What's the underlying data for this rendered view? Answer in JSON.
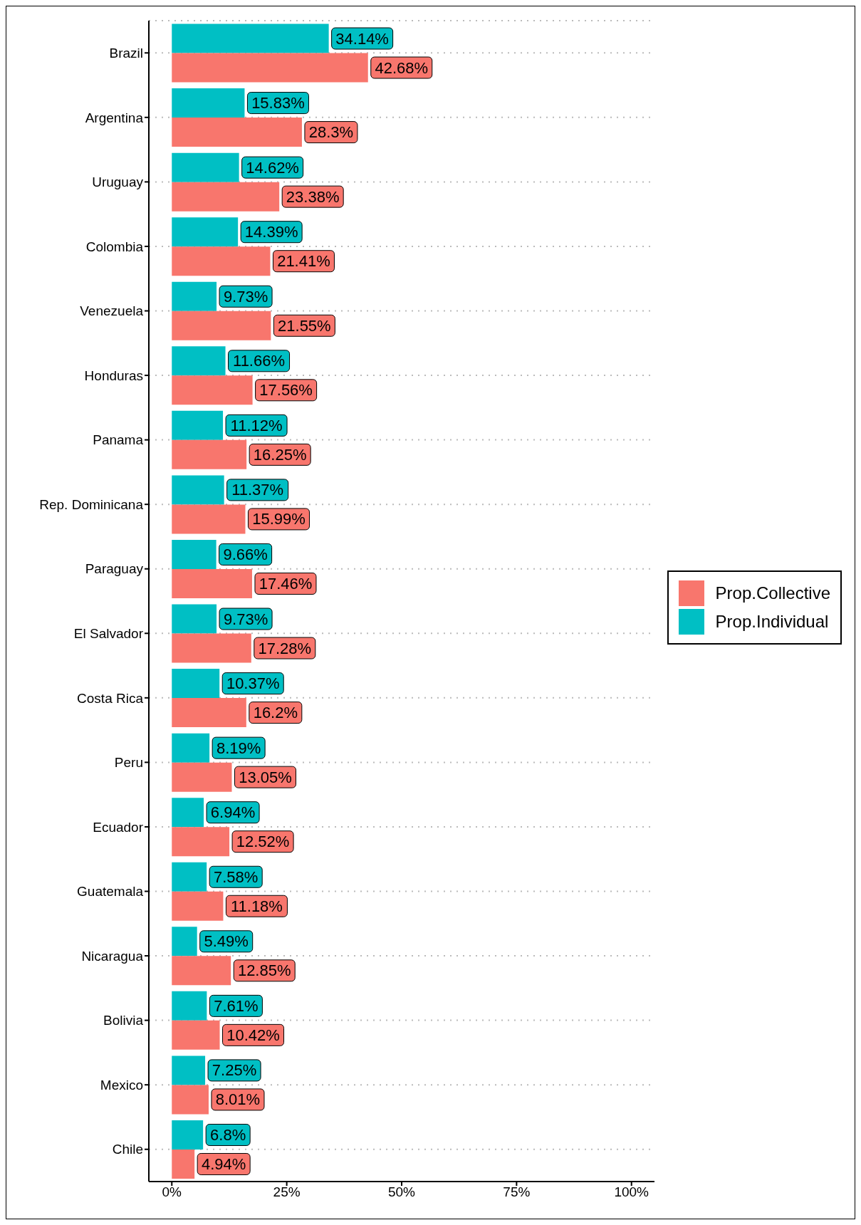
{
  "chart_data": {
    "type": "bar",
    "orientation": "horizontal",
    "categories": [
      "Brazil",
      "Argentina",
      "Uruguay",
      "Colombia",
      "Venezuela",
      "Honduras",
      "Panama",
      "Rep. Dominicana",
      "Paraguay",
      "El Salvador",
      "Costa Rica",
      "Peru",
      "Ecuador",
      "Guatemala",
      "Nicaragua",
      "Bolivia",
      "Mexico",
      "Chile"
    ],
    "series": [
      {
        "name": "Prop.Collective",
        "color": "#f8766d",
        "values": [
          42.68,
          28.3,
          23.38,
          21.41,
          21.55,
          17.56,
          16.25,
          15.99,
          17.46,
          17.28,
          16.2,
          13.05,
          12.52,
          11.18,
          12.85,
          10.42,
          8.01,
          4.94
        ],
        "value_labels": [
          "42.68%",
          "28.3%",
          "23.38%",
          "21.41%",
          "21.55%",
          "17.56%",
          "16.25%",
          "15.99%",
          "17.46%",
          "17.28%",
          "16.2%",
          "13.05%",
          "12.52%",
          "11.18%",
          "12.85%",
          "10.42%",
          "8.01%",
          "4.94%"
        ]
      },
      {
        "name": "Prop.Individual",
        "color": "#00bfc4",
        "values": [
          34.14,
          15.83,
          14.62,
          14.39,
          9.73,
          11.66,
          11.12,
          11.37,
          9.66,
          9.73,
          10.37,
          8.19,
          6.94,
          7.58,
          5.49,
          7.61,
          7.25,
          6.8
        ],
        "value_labels": [
          "34.14%",
          "15.83%",
          "14.62%",
          "14.39%",
          "9.73%",
          "11.66%",
          "11.12%",
          "11.37%",
          "9.66%",
          "9.73%",
          "10.37%",
          "8.19%",
          "6.94%",
          "7.58%",
          "5.49%",
          "7.61%",
          "7.25%",
          "6.8%"
        ]
      }
    ],
    "xlim": [
      -5,
      105
    ],
    "xticks": [
      {
        "value": 0,
        "label": "0%"
      },
      {
        "value": 25,
        "label": "25%"
      },
      {
        "value": 50,
        "label": "50%"
      },
      {
        "value": 75,
        "label": "75%"
      },
      {
        "value": 100,
        "label": "100%"
      }
    ],
    "grid": "y",
    "legend": "right"
  }
}
